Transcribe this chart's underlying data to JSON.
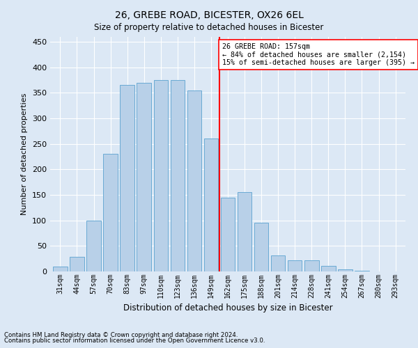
{
  "title": "26, GREBE ROAD, BICESTER, OX26 6EL",
  "subtitle": "Size of property relative to detached houses in Bicester",
  "xlabel": "Distribution of detached houses by size in Bicester",
  "ylabel": "Number of detached properties",
  "bar_labels": [
    "31sqm",
    "44sqm",
    "57sqm",
    "70sqm",
    "83sqm",
    "97sqm",
    "110sqm",
    "123sqm",
    "136sqm",
    "149sqm",
    "162sqm",
    "175sqm",
    "188sqm",
    "201sqm",
    "214sqm",
    "228sqm",
    "241sqm",
    "254sqm",
    "267sqm",
    "280sqm",
    "293sqm"
  ],
  "bar_values": [
    10,
    28,
    100,
    230,
    365,
    370,
    375,
    375,
    355,
    260,
    145,
    155,
    95,
    32,
    22,
    22,
    11,
    4,
    1,
    0,
    0
  ],
  "bar_color": "#b8d0e8",
  "bar_edge_color": "#6aaad4",
  "vline_x_index": 10,
  "annotation_title": "26 GREBE ROAD: 157sqm",
  "annotation_line1": "← 84% of detached houses are smaller (2,154)",
  "annotation_line2": "15% of semi-detached houses are larger (395) →",
  "ylim": [
    0,
    460
  ],
  "yticks": [
    0,
    50,
    100,
    150,
    200,
    250,
    300,
    350,
    400,
    450
  ],
  "footer1": "Contains HM Land Registry data © Crown copyright and database right 2024.",
  "footer2": "Contains public sector information licensed under the Open Government Licence v3.0.",
  "bg_color": "#dce8f5",
  "plot_bg_color": "#dce8f5"
}
